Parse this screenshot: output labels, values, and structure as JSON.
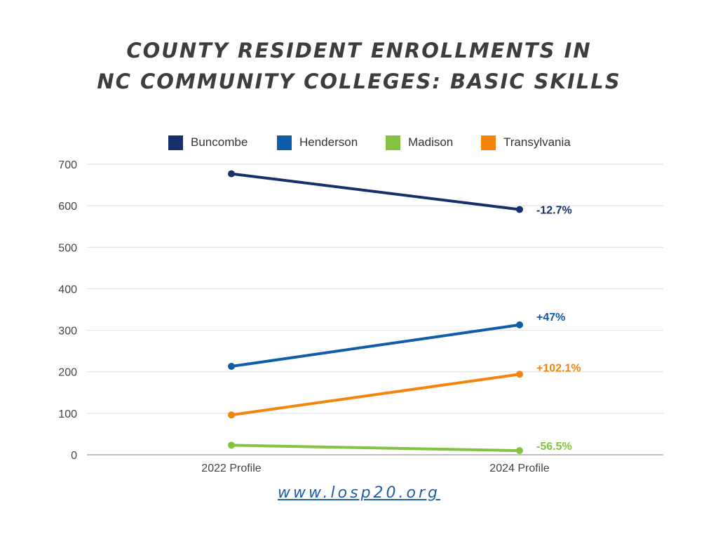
{
  "header": {
    "title_line1": "COUNTY RESIDENT ENROLLMENTS IN",
    "title_line2": "NC COMMUNITY COLLEGES: BASIC SKILLS"
  },
  "footer": {
    "url": "www.losp20.org"
  },
  "chart_data": {
    "type": "line",
    "title": "COUNTY RESIDENT ENROLLMENTS IN NC COMMUNITY COLLEGES: BASIC SKILLS",
    "x": [
      "2022 Profile",
      "2024 Profile"
    ],
    "ylim": [
      0,
      700
    ],
    "yticks": [
      0,
      100,
      200,
      300,
      400,
      500,
      600,
      700
    ],
    "grid": "horizontal",
    "legend_position": "top",
    "series": [
      {
        "name": "Buncombe",
        "color": "#17306b",
        "values": [
          677,
          591
        ],
        "change_label": "-12.7%"
      },
      {
        "name": "Henderson",
        "color": "#0f5ca8",
        "values": [
          213,
          313
        ],
        "change_label": "+47%"
      },
      {
        "name": "Madison",
        "color": "#82c341",
        "values": [
          23,
          10
        ],
        "change_label": "-56.5%"
      },
      {
        "name": "Transylvania",
        "color": "#f5840c",
        "values": [
          96,
          194
        ],
        "change_label": "+102.1%"
      }
    ]
  }
}
